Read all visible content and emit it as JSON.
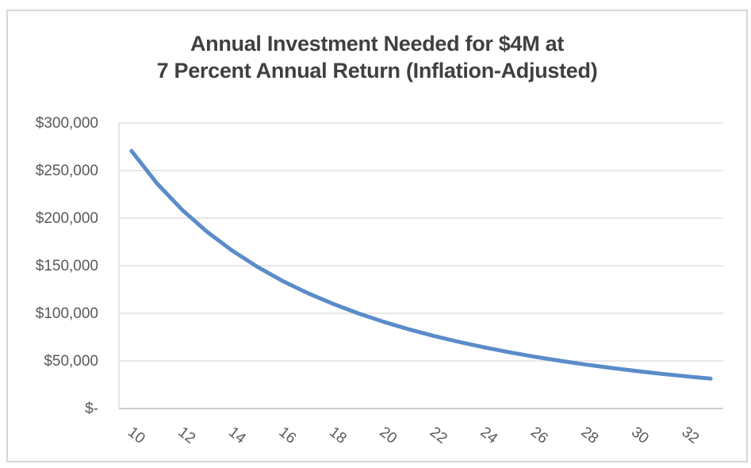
{
  "chart_data": {
    "type": "line",
    "title": "Annual Investment Needed for $4M at 7 Percent Annual Return (Inflation-Adjusted)",
    "title_lines": [
      "Annual Investment Needed for $4M at",
      "7 Percent Annual Return (Inflation-Adjusted)"
    ],
    "x": [
      10,
      11,
      12,
      13,
      14,
      15,
      16,
      17,
      18,
      19,
      20,
      21,
      22,
      23,
      24,
      25,
      26,
      27,
      28,
      29,
      30,
      31,
      32,
      33
    ],
    "values": [
      270600,
      236800,
      209000,
      185600,
      165800,
      148800,
      134000,
      121200,
      110000,
      100000,
      91200,
      83300,
      76300,
      70000,
      64300,
      59100,
      54400,
      50200,
      46300,
      42800,
      39600,
      36600,
      33900,
      31400
    ],
    "x_tick_values": [
      10,
      12,
      14,
      16,
      18,
      20,
      22,
      24,
      26,
      28,
      30,
      32
    ],
    "x_tick_labels": [
      "10",
      "12",
      "14",
      "16",
      "18",
      "20",
      "22",
      "24",
      "26",
      "28",
      "30",
      "32"
    ],
    "y_tick_values": [
      0,
      50000,
      100000,
      150000,
      200000,
      250000,
      300000
    ],
    "y_tick_labels": [
      "$-",
      "$50,000",
      "$100,000",
      "$150,000",
      "$200,000",
      "$250,000",
      "$300,000"
    ],
    "ylim": [
      0,
      300000
    ],
    "xlabel": "",
    "ylabel": "",
    "grid": "horizontal",
    "legend": "none",
    "x_tick_rotation_deg": 38,
    "colors": {
      "line": "#5B8CC9",
      "gridline": "#D9D9D9",
      "axis": "#BFBFBF",
      "title_text": "#404040",
      "tick_text": "#595959",
      "frame_border": "#D7D7D7",
      "background": "#FFFFFF"
    }
  }
}
